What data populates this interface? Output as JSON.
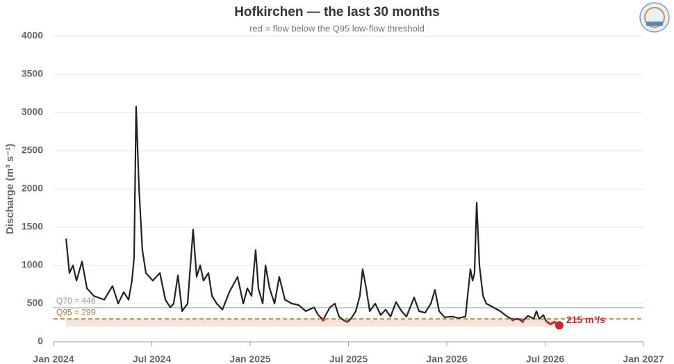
{
  "chart_data": {
    "type": "line",
    "title": "Hofkirchen — the last 30 months",
    "subtitle": "red = flow below the Q95 low-flow threshold",
    "y_label": "Discharge  (m³ s⁻¹)",
    "xlim": [
      2024,
      2027
    ],
    "xticks": [
      {
        "value": 2024,
        "label": "Jan 2024"
      },
      {
        "value": 2024.5,
        "label": "Jul 2024"
      },
      {
        "value": 2025,
        "label": "Jan 2025"
      },
      {
        "value": 2025.5,
        "label": "Jul 2025"
      },
      {
        "value": 2026,
        "label": "Jan 2026"
      },
      {
        "value": 2026.5,
        "label": "Jul 2026"
      },
      {
        "value": 2027,
        "label": "Jan 2027"
      }
    ],
    "ylim": [
      0,
      4000
    ],
    "yticks": [
      0,
      500,
      1000,
      1500,
      2000,
      2500,
      3000,
      3500,
      4000
    ],
    "grid": true,
    "band": {
      "from": 200,
      "to": 299,
      "color": "#f3e3d8"
    },
    "reference_lines": [
      {
        "value": 446,
        "label": "Q70 = 446",
        "color": "#999999",
        "style": "solid"
      },
      {
        "value": 299,
        "label": "Q95 = 299",
        "color": "#b07a3a",
        "style": "dashed"
      }
    ],
    "series": [
      {
        "color": "#222222",
        "low_color": "#c62828",
        "end_label": "215 m³/s",
        "x": [
          2024.064,
          2024.081,
          2024.099,
          2024.117,
          2024.145,
          2024.17,
          2024.205,
          2024.258,
          2024.3,
          2024.329,
          2024.357,
          2024.382,
          2024.399,
          2024.41,
          2024.42,
          2024.435,
          2024.452,
          2024.47,
          2024.505,
          2024.541,
          2024.569,
          2024.594,
          2024.611,
          2024.633,
          2024.654,
          2024.682,
          2024.71,
          2024.728,
          2024.746,
          2024.763,
          2024.788,
          2024.806,
          2024.83,
          2024.859,
          2024.894,
          2024.936,
          2024.965,
          2024.986,
          2025.007,
          2025.028,
          2025.042,
          2025.064,
          2025.078,
          2025.099,
          2025.124,
          2025.148,
          2025.177,
          2025.212,
          2025.247,
          2025.283,
          2025.325,
          2025.346,
          2025.371,
          2025.406,
          2025.431,
          2025.452,
          2025.477,
          2025.495,
          2025.512,
          2025.537,
          2025.558,
          2025.572,
          2025.59,
          2025.608,
          2025.636,
          2025.664,
          2025.689,
          2025.714,
          2025.742,
          2025.77,
          2025.795,
          2025.834,
          2025.859,
          2025.89,
          2025.919,
          2025.94,
          2025.961,
          2025.989,
          2026.025,
          2026.06,
          2026.095,
          2026.12,
          2026.131,
          2026.141,
          2026.152,
          2026.166,
          2026.184,
          2026.201,
          2026.237,
          2026.272,
          2026.307,
          2026.336,
          2026.36,
          2026.385,
          2026.413,
          2026.442,
          2026.456,
          2026.47,
          2026.491,
          2026.505,
          2026.527,
          2026.548,
          2026.572
        ],
        "values": [
          1350,
          900,
          1000,
          800,
          1050,
          700,
          600,
          550,
          730,
          500,
          650,
          550,
          800,
          1100,
          3080,
          2000,
          1200,
          900,
          800,
          900,
          550,
          450,
          500,
          870,
          400,
          500,
          1470,
          850,
          1000,
          800,
          900,
          600,
          500,
          420,
          650,
          850,
          500,
          700,
          600,
          1200,
          700,
          500,
          1000,
          700,
          500,
          850,
          550,
          500,
          480,
          400,
          450,
          350,
          290,
          450,
          500,
          330,
          280,
          260,
          300,
          400,
          600,
          950,
          700,
          400,
          500,
          350,
          420,
          330,
          520,
          400,
          330,
          580,
          400,
          380,
          500,
          680,
          400,
          320,
          330,
          310,
          330,
          950,
          800,
          900,
          1820,
          1000,
          600,
          500,
          450,
          400,
          330,
          290,
          300,
          270,
          340,
          300,
          400,
          300,
          350,
          270,
          230,
          260,
          215
        ]
      }
    ]
  }
}
